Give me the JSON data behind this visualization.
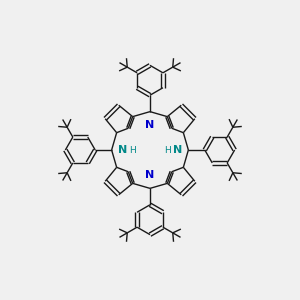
{
  "background_color": "#f0f0f0",
  "bond_color": "#1a1a1a",
  "N_color": "#0000cc",
  "NH_color": "#008888",
  "bond_width": 1.0,
  "figsize": [
    3.0,
    3.0
  ],
  "dpi": 100,
  "xlim": [
    -5.0,
    5.0
  ],
  "ylim": [
    -5.0,
    5.0
  ]
}
